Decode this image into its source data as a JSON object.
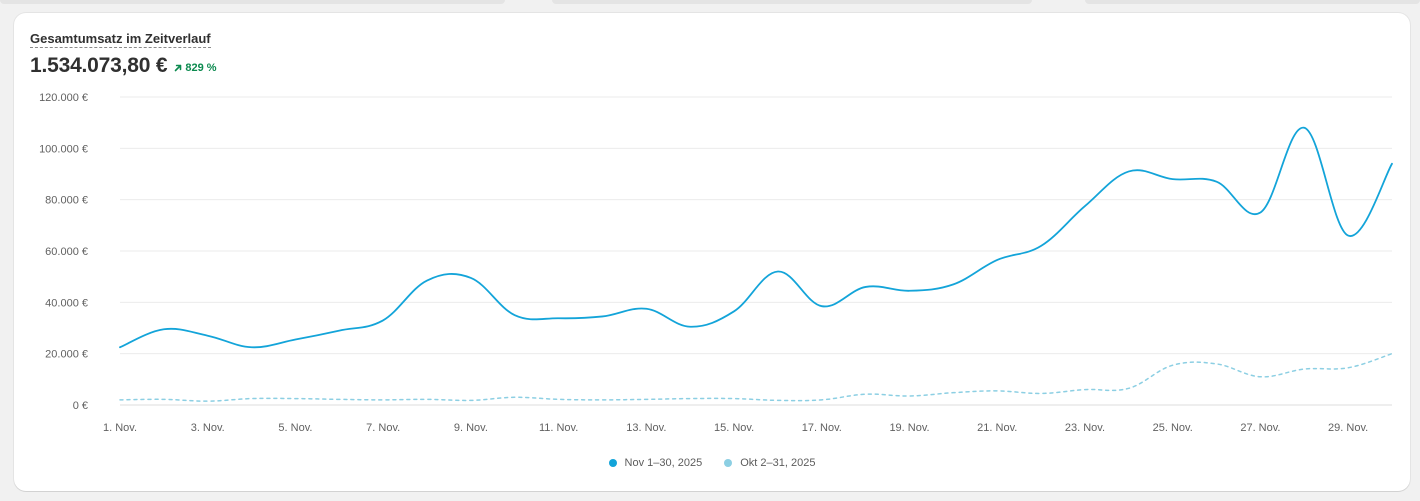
{
  "card": {
    "title": "Gesamtumsatz im Zeitverlauf",
    "total": "1.534.073,80 €",
    "delta": "829 %",
    "delta_icon": "arrow-up-right-icon",
    "delta_color": "#0c8a4f"
  },
  "colors": {
    "current": "#13a4d9",
    "previous": "#8ccfe3",
    "grid": "#ebebeb",
    "tick_text": "#616161"
  },
  "chart_data": {
    "type": "line",
    "xlabel": "",
    "ylabel": "",
    "ylim": [
      0,
      120000
    ],
    "y_ticks": [
      0,
      20000,
      40000,
      60000,
      80000,
      100000,
      120000
    ],
    "y_tick_labels": [
      "0 €",
      "20.000 €",
      "40.000 €",
      "60.000 €",
      "80.000 €",
      "100.000 €",
      "120.000 €"
    ],
    "x": [
      1,
      2,
      3,
      4,
      5,
      6,
      7,
      8,
      9,
      10,
      11,
      12,
      13,
      14,
      15,
      16,
      17,
      18,
      19,
      20,
      21,
      22,
      23,
      24,
      25,
      26,
      27,
      28,
      29,
      30
    ],
    "x_tick_labels": [
      "1. Nov.",
      "3. Nov.",
      "5. Nov.",
      "7. Nov.",
      "9. Nov.",
      "11. Nov.",
      "13. Nov.",
      "15. Nov.",
      "17. Nov.",
      "19. Nov.",
      "21. Nov.",
      "23. Nov.",
      "25. Nov.",
      "27. Nov.",
      "29. Nov."
    ],
    "grid": true,
    "legend_position": "bottom",
    "series": [
      {
        "name": "Nov 1–30, 2025",
        "style": "solid",
        "values": [
          22500,
          29500,
          27000,
          22500,
          25500,
          29000,
          33000,
          48500,
          49500,
          35000,
          33800,
          34500,
          37500,
          30500,
          36500,
          52000,
          38500,
          46000,
          44500,
          47000,
          56500,
          62000,
          77500,
          91000,
          88000,
          87000,
          75000,
          108000,
          66000,
          94000
        ]
      },
      {
        "name": "Okt 2–31, 2025",
        "style": "dashed",
        "values": [
          2000,
          2200,
          1500,
          2500,
          2500,
          2200,
          2000,
          2200,
          1800,
          3000,
          2200,
          2000,
          2200,
          2500,
          2500,
          1800,
          2000,
          4200,
          3500,
          4800,
          5500,
          4500,
          6000,
          6500,
          15500,
          16000,
          11000,
          14000,
          14500,
          20000
        ]
      }
    ]
  }
}
